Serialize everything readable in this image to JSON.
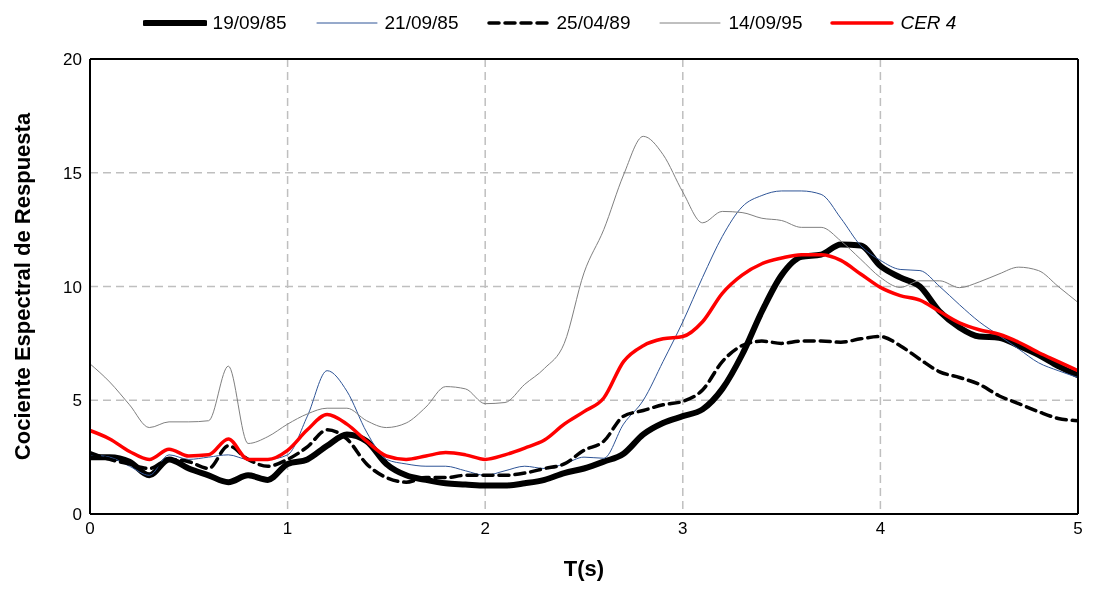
{
  "chart_data": {
    "type": "line",
    "xlabel": "T(s)",
    "ylabel": "Cociente Espectral de Respuesta",
    "x": [
      0,
      0.1,
      0.2,
      0.3,
      0.4,
      0.5,
      0.6,
      0.7,
      0.8,
      0.9,
      1,
      1.1,
      1.2,
      1.3,
      1.4,
      1.5,
      1.6,
      1.7,
      1.8,
      1.9,
      2,
      2.1,
      2.2,
      2.3,
      2.4,
      2.5,
      2.6,
      2.7,
      2.8,
      2.9,
      3,
      3.1,
      3.2,
      3.3,
      3.4,
      3.5,
      3.6,
      3.7,
      3.8,
      3.9,
      4,
      4.1,
      4.2,
      4.3,
      4.4,
      4.5,
      4.6,
      4.7,
      4.8,
      4.9,
      5
    ],
    "series": [
      {
        "name": "19/09/85",
        "color": "#000000",
        "line_style": "solid",
        "values": [
          2.5,
          2.5,
          2.3,
          1.7,
          2.4,
          2.0,
          1.7,
          1.4,
          1.7,
          1.5,
          2.2,
          2.4,
          3.0,
          3.5,
          3.2,
          2.2,
          1.7,
          1.5,
          1.35,
          1.3,
          1.25,
          1.25,
          1.35,
          1.5,
          1.8,
          2.0,
          2.3,
          2.65,
          3.5,
          4.0,
          4.3,
          4.6,
          5.5,
          7.0,
          8.9,
          10.5,
          11.3,
          11.4,
          11.85,
          11.8,
          10.9,
          10.4,
          10.0,
          8.9,
          8.2,
          7.8,
          7.75,
          7.4,
          7.0,
          6.5,
          6.1
        ]
      },
      {
        "name": "21/09/85",
        "color": "#2f5597",
        "line_style": "solid",
        "values": [
          2.6,
          2.5,
          2.1,
          1.7,
          2.6,
          2.4,
          2.5,
          2.6,
          2.4,
          2.4,
          2.6,
          4.3,
          6.3,
          5.4,
          3.6,
          2.4,
          2.2,
          2.1,
          2.1,
          1.9,
          1.7,
          1.9,
          2.1,
          2.0,
          2.2,
          2.5,
          2.45,
          3.95,
          5.0,
          6.7,
          8.45,
          10.4,
          12.2,
          13.5,
          14.0,
          14.2,
          14.2,
          14.05,
          13.0,
          11.8,
          11.15,
          10.75,
          10.7,
          10.0,
          9.2,
          8.45,
          7.85,
          7.25,
          6.65,
          6.3,
          6.0
        ]
      },
      {
        "name": "25/04/89",
        "color": "#000000",
        "line_style": "dashed",
        "values": [
          2.7,
          2.4,
          2.2,
          2.0,
          2.4,
          2.3,
          2.0,
          3.0,
          2.4,
          2.1,
          2.4,
          2.95,
          3.7,
          3.3,
          2.2,
          1.6,
          1.4,
          1.6,
          1.6,
          1.7,
          1.7,
          1.7,
          1.8,
          2.0,
          2.2,
          2.8,
          3.2,
          4.3,
          4.55,
          4.8,
          4.95,
          5.45,
          6.7,
          7.4,
          7.6,
          7.5,
          7.6,
          7.6,
          7.55,
          7.7,
          7.8,
          7.4,
          6.8,
          6.25,
          6.0,
          5.7,
          5.2,
          4.85,
          4.5,
          4.2,
          4.1
        ]
      },
      {
        "name": "14/09/95",
        "color": "#808080",
        "line_style": "solid",
        "values": [
          6.6,
          5.8,
          4.8,
          3.8,
          4.05,
          4.05,
          4.1,
          6.5,
          3.1,
          3.4,
          3.95,
          4.4,
          4.65,
          4.65,
          4.1,
          3.8,
          4.0,
          4.7,
          5.6,
          5.5,
          4.85,
          4.9,
          5.7,
          6.4,
          7.5,
          10.6,
          12.5,
          14.9,
          16.6,
          15.8,
          14.15,
          12.8,
          13.3,
          13.25,
          13.0,
          12.9,
          12.6,
          12.6,
          12.0,
          11.2,
          10.4,
          9.96,
          10.25,
          10.25,
          9.95,
          10.2,
          10.55,
          10.85,
          10.7,
          10.0,
          9.3
        ]
      },
      {
        "name": "CER 4",
        "color": "#ff0000",
        "line_style": "solid",
        "values": [
          3.67,
          3.3,
          2.75,
          2.4,
          2.85,
          2.55,
          2.6,
          3.3,
          2.4,
          2.4,
          2.8,
          3.7,
          4.37,
          3.95,
          3.2,
          2.55,
          2.4,
          2.55,
          2.7,
          2.6,
          2.4,
          2.6,
          2.9,
          3.25,
          3.95,
          4.5,
          5.1,
          6.7,
          7.4,
          7.7,
          7.8,
          8.45,
          9.7,
          10.5,
          11.0,
          11.25,
          11.4,
          11.4,
          11.15,
          10.55,
          9.96,
          9.6,
          9.4,
          8.9,
          8.4,
          8.1,
          7.9,
          7.55,
          7.1,
          6.7,
          6.3
        ]
      }
    ],
    "xlim": [
      0,
      5
    ],
    "xticks": [
      0,
      1,
      2,
      3,
      4,
      5
    ],
    "ylim": [
      0,
      20
    ],
    "yticks": [
      0,
      5,
      10,
      15,
      20
    ],
    "grid": true,
    "legend": "top",
    "marker": "none"
  }
}
